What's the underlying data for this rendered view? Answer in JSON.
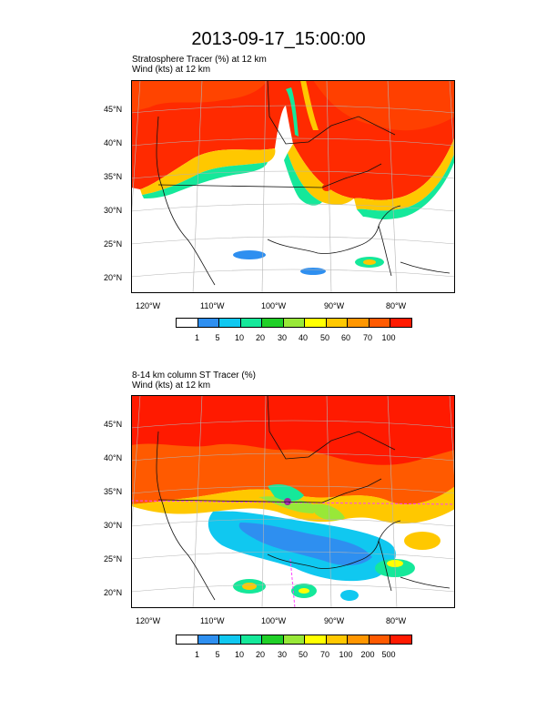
{
  "title": "2013-09-17_15:00:00",
  "panels": [
    {
      "line1": "Stratosphere Tracer   (%)     at   12 km",
      "line2": "Wind   (kts)     at   12 km",
      "lat_labels": [
        "45°N",
        "40°N",
        "35°N",
        "30°N",
        "25°N",
        "20°N"
      ],
      "lon_labels": [
        "120°W",
        "110°W",
        "100°W",
        "90°W",
        "80°W"
      ],
      "colorbar_labels": [
        "1",
        "5",
        "10",
        "20",
        "30",
        "40",
        "50",
        "60",
        "70",
        "100"
      ]
    },
    {
      "line1": "8-14 km column ST Tracer   (%)",
      "line2": "Wind   (kts)     at   12 km",
      "lat_labels": [
        "45°N",
        "40°N",
        "35°N",
        "30°N",
        "25°N",
        "20°N"
      ],
      "lon_labels": [
        "120°W",
        "110°W",
        "100°W",
        "90°W",
        "80°W"
      ],
      "colorbar_labels": [
        "1",
        "5",
        "10",
        "20",
        "30",
        "50",
        "70",
        "100",
        "200",
        "500"
      ]
    }
  ],
  "colors": {
    "bins": [
      "#ffffff",
      "#2e8ff0",
      "#10c8f0",
      "#15e89a",
      "#20d028",
      "#98e838",
      "#ffff00",
      "#ffc800",
      "#ff9600",
      "#ff5a00",
      "#ff1a00"
    ]
  }
}
